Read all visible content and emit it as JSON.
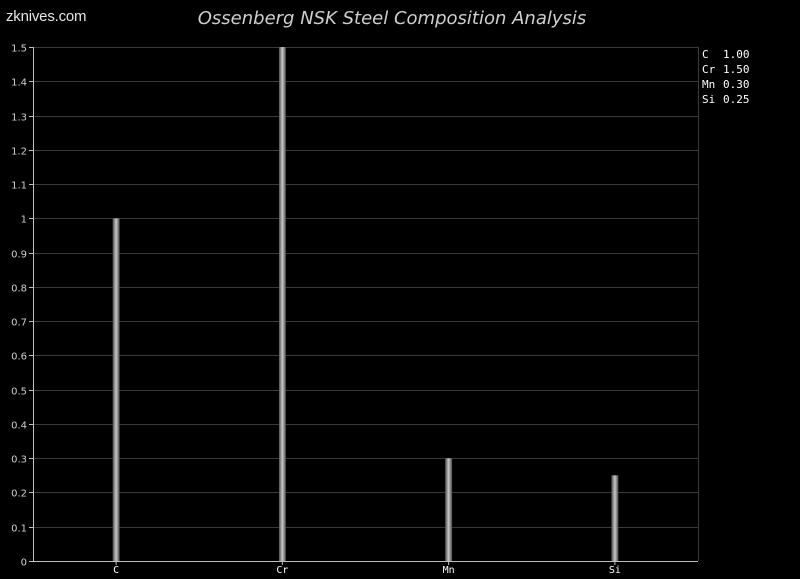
{
  "watermark": "zknives.com",
  "chart_data": {
    "type": "bar",
    "title": "Ossenberg NSK Steel Composition Analysis",
    "xlabel": "",
    "ylabel": "",
    "categories": [
      "C",
      "Cr",
      "Mn",
      "Si"
    ],
    "values": [
      1.0,
      1.5,
      0.3,
      0.25
    ],
    "ylim": [
      0,
      1.5
    ],
    "yticks": [
      "0",
      "0.1",
      "0.2",
      "0.3",
      "0.4",
      "0.5",
      "0.6",
      "0.7",
      "0.8",
      "0.9",
      "1",
      "1.1",
      "1.2",
      "1.3",
      "1.4",
      "1.5"
    ],
    "grid": true,
    "legend_position": "top-right",
    "legend": [
      {
        "name": "C",
        "value": "1.00"
      },
      {
        "name": "Cr",
        "value": "1.50"
      },
      {
        "name": "Mn",
        "value": "0.30"
      },
      {
        "name": "Si",
        "value": "0.25"
      }
    ],
    "colors": {
      "bar": "#9a9a9a",
      "grid": "#3a3a3a",
      "axis": "#bfbfbf",
      "text": "#cfcfcf"
    }
  }
}
